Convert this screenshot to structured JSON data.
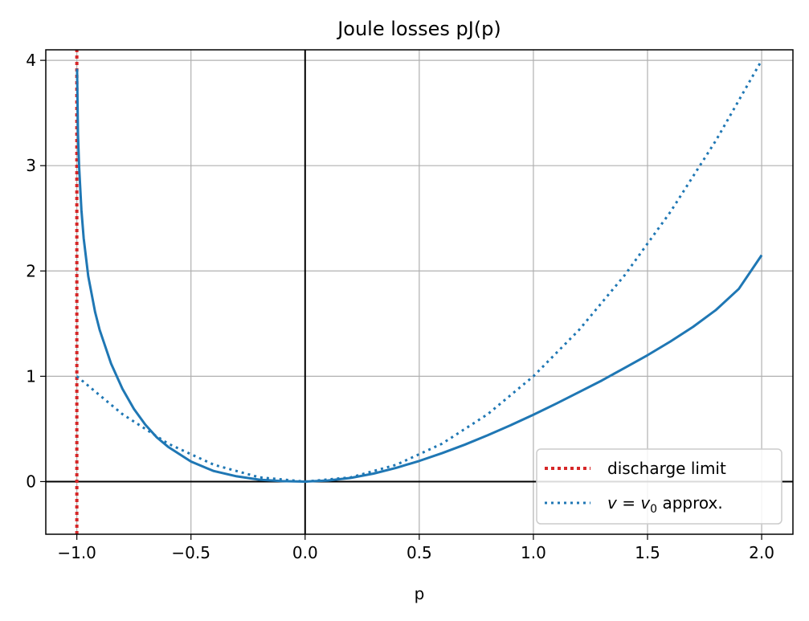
{
  "chart_data": {
    "type": "line",
    "title": "Joule losses pJ(p)",
    "xlabel": "p",
    "ylabel": "",
    "xlim": [
      -1.136,
      2.137
    ],
    "ylim": [
      -0.5,
      4.1
    ],
    "x_ticks": [
      -1.0,
      -0.5,
      0.0,
      0.5,
      1.0,
      1.5,
      2.0
    ],
    "x_tick_labels": [
      "−1.0",
      "−0.5",
      "0.0",
      "0.5",
      "1.0",
      "1.5",
      "2.0"
    ],
    "y_ticks": [
      0,
      1,
      2,
      3,
      4
    ],
    "y_tick_labels": [
      "0",
      "1",
      "2",
      "3",
      "4"
    ],
    "grid": true,
    "reference_lines": [
      {
        "orientation": "vertical",
        "x": 0,
        "color": "#000000"
      },
      {
        "orientation": "horizontal",
        "y": 0,
        "color": "#000000"
      }
    ],
    "legend_position": "lower-right",
    "series": [
      {
        "color": "#1f77b4",
        "style": "solid",
        "x": [
          -0.999,
          -0.995,
          -0.99,
          -0.98,
          -0.97,
          -0.95,
          -0.92,
          -0.9,
          -0.85,
          -0.8,
          -0.75,
          -0.7,
          -0.65,
          -0.6,
          -0.5,
          -0.4,
          -0.3,
          -0.2,
          -0.1,
          0.0,
          0.1,
          0.2,
          0.3,
          0.4,
          0.5,
          0.6,
          0.7,
          0.8,
          0.9,
          1.0,
          1.1,
          1.2,
          1.3,
          1.4,
          1.5,
          1.6,
          1.7,
          1.8,
          1.9,
          2.0
        ],
        "y": [
          3.92,
          3.3,
          2.99,
          2.58,
          2.31,
          1.95,
          1.61,
          1.44,
          1.12,
          0.88,
          0.69,
          0.54,
          0.42,
          0.33,
          0.19,
          0.1,
          0.05,
          0.018,
          0.004,
          0.0,
          0.01,
          0.035,
          0.076,
          0.131,
          0.196,
          0.27,
          0.351,
          0.44,
          0.535,
          0.635,
          0.74,
          0.85,
          0.96,
          1.08,
          1.2,
          1.33,
          1.47,
          1.63,
          1.83,
          2.15
        ]
      },
      {
        "name": "discharge limit",
        "color": "#d62728",
        "style": "dotted",
        "x": [
          -1.0,
          -1.0
        ],
        "y": [
          -0.5,
          4.1
        ]
      },
      {
        "name": "v = v0 approx.",
        "name_display": {
          "v": "v",
          "eq": " = ",
          "v0": "v",
          "sub": "0",
          "suffix": " approx."
        },
        "color": "#1f77b4",
        "style": "dotted",
        "x": [
          -1.0,
          -0.8,
          -0.6,
          -0.4,
          -0.2,
          0.0,
          0.2,
          0.4,
          0.6,
          0.8,
          1.0,
          1.2,
          1.4,
          1.6,
          1.8,
          2.0
        ],
        "y": [
          1.0,
          0.64,
          0.36,
          0.16,
          0.04,
          0.0,
          0.04,
          0.16,
          0.36,
          0.64,
          1.0,
          1.44,
          1.96,
          2.56,
          3.24,
          4.0
        ]
      }
    ]
  }
}
